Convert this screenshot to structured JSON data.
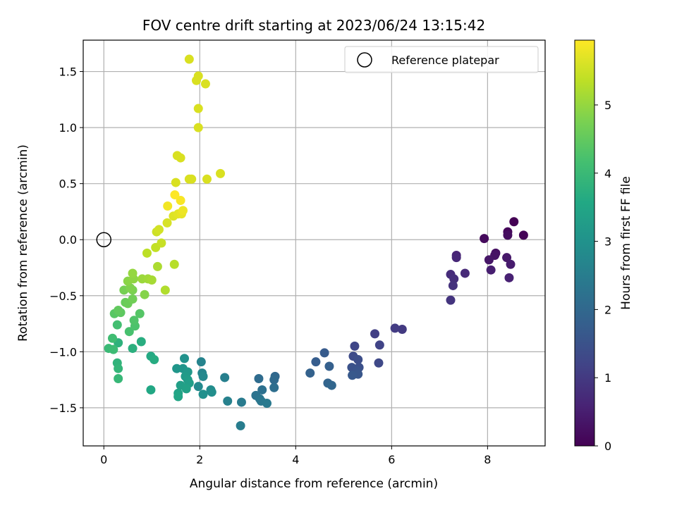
{
  "chart_data": {
    "type": "scatter",
    "title": "FOV centre drift starting at 2023/06/24 13:15:42",
    "xlabel": "Angular distance from reference (arcmin)",
    "ylabel": "Rotation from reference (arcmin)",
    "xlim": [
      -0.43,
      9.2
    ],
    "ylim": [
      -1.84,
      1.78
    ],
    "xticks": [
      0,
      2,
      4,
      6,
      8
    ],
    "xtick_labels": [
      "0",
      "2",
      "4",
      "6",
      "8"
    ],
    "yticks": [
      -1.5,
      -1.0,
      -0.5,
      0.0,
      0.5,
      1.0,
      1.5
    ],
    "ytick_labels": [
      "−1.5",
      "−1.0",
      "−0.5",
      "0.0",
      "0.5",
      "1.0",
      "1.5"
    ],
    "grid": true,
    "legend": {
      "placement": "top-right",
      "entries": [
        "Reference platepar"
      ]
    },
    "colorbar": {
      "label": "Hours from first FF file",
      "colormap": "viridis",
      "range": [
        0,
        5.95
      ],
      "ticks": [
        0,
        1,
        2,
        3,
        4,
        5
      ],
      "tick_labels": [
        "0",
        "1",
        "2",
        "3",
        "4",
        "5"
      ]
    },
    "reference_point": {
      "name": "Reference platepar",
      "x": 0,
      "y": 0,
      "marker": "hollow-circle",
      "color": "#000000"
    },
    "series": [
      {
        "color_by": "hours",
        "points": [
          [
            8.55,
            0.16,
            0.0
          ],
          [
            8.75,
            0.04,
            0.05
          ],
          [
            8.42,
            0.07,
            0.1
          ],
          [
            7.93,
            0.01,
            0.15
          ],
          [
            8.42,
            0.04,
            0.2
          ],
          [
            8.17,
            -0.12,
            0.25
          ],
          [
            8.15,
            -0.14,
            0.3
          ],
          [
            8.03,
            -0.18,
            0.35
          ],
          [
            8.4,
            -0.16,
            0.4
          ],
          [
            8.48,
            -0.22,
            0.45
          ],
          [
            8.07,
            -0.27,
            0.5
          ],
          [
            8.45,
            -0.34,
            0.55
          ],
          [
            7.35,
            -0.14,
            0.6
          ],
          [
            7.35,
            -0.16,
            0.65
          ],
          [
            7.53,
            -0.3,
            0.7
          ],
          [
            7.23,
            -0.31,
            0.75
          ],
          [
            7.3,
            -0.35,
            0.8
          ],
          [
            7.28,
            -0.41,
            0.85
          ],
          [
            7.23,
            -0.54,
            0.9
          ],
          [
            6.22,
            -0.8,
            1.0
          ],
          [
            6.07,
            -0.79,
            1.05
          ],
          [
            5.65,
            -0.84,
            1.1
          ],
          [
            5.75,
            -0.94,
            1.2
          ],
          [
            5.23,
            -0.95,
            1.25
          ],
          [
            5.73,
            -1.1,
            1.3
          ],
          [
            5.2,
            -1.04,
            1.35
          ],
          [
            5.3,
            -1.07,
            1.4
          ],
          [
            5.32,
            -1.14,
            1.45
          ],
          [
            5.17,
            -1.14,
            1.5
          ],
          [
            5.28,
            -1.17,
            1.55
          ],
          [
            5.3,
            -1.2,
            1.6
          ],
          [
            5.18,
            -1.21,
            1.65
          ],
          [
            4.6,
            -1.01,
            1.7
          ],
          [
            4.42,
            -1.09,
            1.75
          ],
          [
            4.7,
            -1.13,
            1.8
          ],
          [
            4.3,
            -1.19,
            1.85
          ],
          [
            4.67,
            -1.28,
            1.9
          ],
          [
            4.75,
            -1.3,
            1.95
          ],
          [
            3.57,
            -1.22,
            2.0
          ],
          [
            3.55,
            -1.25,
            2.05
          ],
          [
            3.23,
            -1.24,
            2.1
          ],
          [
            3.55,
            -1.32,
            2.15
          ],
          [
            3.3,
            -1.34,
            2.2
          ],
          [
            3.17,
            -1.39,
            2.25
          ],
          [
            3.25,
            -1.42,
            2.3
          ],
          [
            3.28,
            -1.44,
            2.35
          ],
          [
            3.4,
            -1.46,
            2.4
          ],
          [
            2.87,
            -1.45,
            2.45
          ],
          [
            2.85,
            -1.66,
            2.5
          ],
          [
            2.52,
            -1.23,
            2.55
          ],
          [
            2.58,
            -1.44,
            2.6
          ],
          [
            2.03,
            -1.09,
            2.65
          ],
          [
            2.05,
            -1.19,
            2.7
          ],
          [
            2.07,
            -1.22,
            2.75
          ],
          [
            1.97,
            -1.31,
            2.8
          ],
          [
            2.23,
            -1.34,
            2.85
          ],
          [
            2.25,
            -1.36,
            2.9
          ],
          [
            2.07,
            -1.38,
            2.95
          ],
          [
            1.68,
            -1.06,
            3.0
          ],
          [
            1.65,
            -1.15,
            3.05
          ],
          [
            1.52,
            -1.15,
            3.1
          ],
          [
            1.75,
            -1.18,
            3.15
          ],
          [
            1.7,
            -1.22,
            3.2
          ],
          [
            1.75,
            -1.25,
            3.25
          ],
          [
            1.78,
            -1.28,
            3.3
          ],
          [
            1.6,
            -1.3,
            3.35
          ],
          [
            1.72,
            -1.33,
            3.4
          ],
          [
            1.55,
            -1.37,
            3.45
          ],
          [
            1.55,
            -1.4,
            3.5
          ],
          [
            0.98,
            -1.34,
            3.55
          ],
          [
            0.98,
            -1.04,
            3.6
          ],
          [
            1.05,
            -1.07,
            3.65
          ],
          [
            0.78,
            -0.91,
            3.7
          ],
          [
            0.6,
            -0.97,
            3.75
          ],
          [
            0.3,
            -0.92,
            3.8
          ],
          [
            0.28,
            -1.1,
            3.85
          ],
          [
            0.3,
            -1.15,
            3.9
          ],
          [
            0.3,
            -1.24,
            3.95
          ],
          [
            0.1,
            -0.97,
            4.0
          ],
          [
            0.2,
            -0.98,
            4.05
          ],
          [
            0.18,
            -0.88,
            4.1
          ],
          [
            0.28,
            -0.76,
            4.15
          ],
          [
            0.53,
            -0.82,
            4.2
          ],
          [
            0.65,
            -0.77,
            4.25
          ],
          [
            0.63,
            -0.72,
            4.3
          ],
          [
            0.75,
            -0.66,
            4.35
          ],
          [
            0.22,
            -0.66,
            4.4
          ],
          [
            0.35,
            -0.65,
            4.45
          ],
          [
            0.3,
            -0.63,
            4.5
          ],
          [
            0.45,
            -0.56,
            4.55
          ],
          [
            0.5,
            -0.57,
            4.6
          ],
          [
            0.6,
            -0.53,
            4.65
          ],
          [
            0.42,
            -0.45,
            4.7
          ],
          [
            0.6,
            -0.45,
            4.75
          ],
          [
            0.55,
            -0.43,
            4.8
          ],
          [
            0.85,
            -0.49,
            4.85
          ],
          [
            0.5,
            -0.37,
            4.9
          ],
          [
            0.62,
            -0.35,
            4.95
          ],
          [
            0.6,
            -0.3,
            5.0
          ],
          [
            0.8,
            -0.35,
            5.05
          ],
          [
            0.92,
            -0.35,
            5.1
          ],
          [
            1.0,
            -0.36,
            5.15
          ],
          [
            1.12,
            -0.24,
            5.2
          ],
          [
            1.28,
            -0.45,
            5.25
          ],
          [
            1.47,
            -0.22,
            5.3
          ],
          [
            0.9,
            -0.12,
            5.35
          ],
          [
            1.08,
            -0.07,
            5.4
          ],
          [
            1.2,
            -0.03,
            5.45
          ],
          [
            1.1,
            0.07,
            5.5
          ],
          [
            1.15,
            0.09,
            5.55
          ],
          [
            1.32,
            0.15,
            5.6
          ],
          [
            1.45,
            0.21,
            5.65
          ],
          [
            1.55,
            0.23,
            5.7
          ],
          [
            1.62,
            0.23,
            5.75
          ],
          [
            1.65,
            0.26,
            5.8
          ],
          [
            1.33,
            0.3,
            5.85
          ],
          [
            1.6,
            0.35,
            5.9
          ],
          [
            1.48,
            0.4,
            5.95
          ]
        ]
      },
      {
        "color": "#d9e021",
        "points": [
          [
            1.5,
            0.51
          ],
          [
            1.78,
            0.54
          ],
          [
            1.83,
            0.54
          ],
          [
            2.15,
            0.54
          ],
          [
            2.43,
            0.59
          ],
          [
            1.53,
            0.75
          ],
          [
            1.6,
            0.73
          ],
          [
            1.97,
            1.0
          ],
          [
            1.97,
            1.17
          ],
          [
            1.93,
            1.42
          ],
          [
            1.97,
            1.46
          ],
          [
            2.12,
            1.39
          ],
          [
            1.78,
            1.61
          ]
        ]
      }
    ]
  }
}
